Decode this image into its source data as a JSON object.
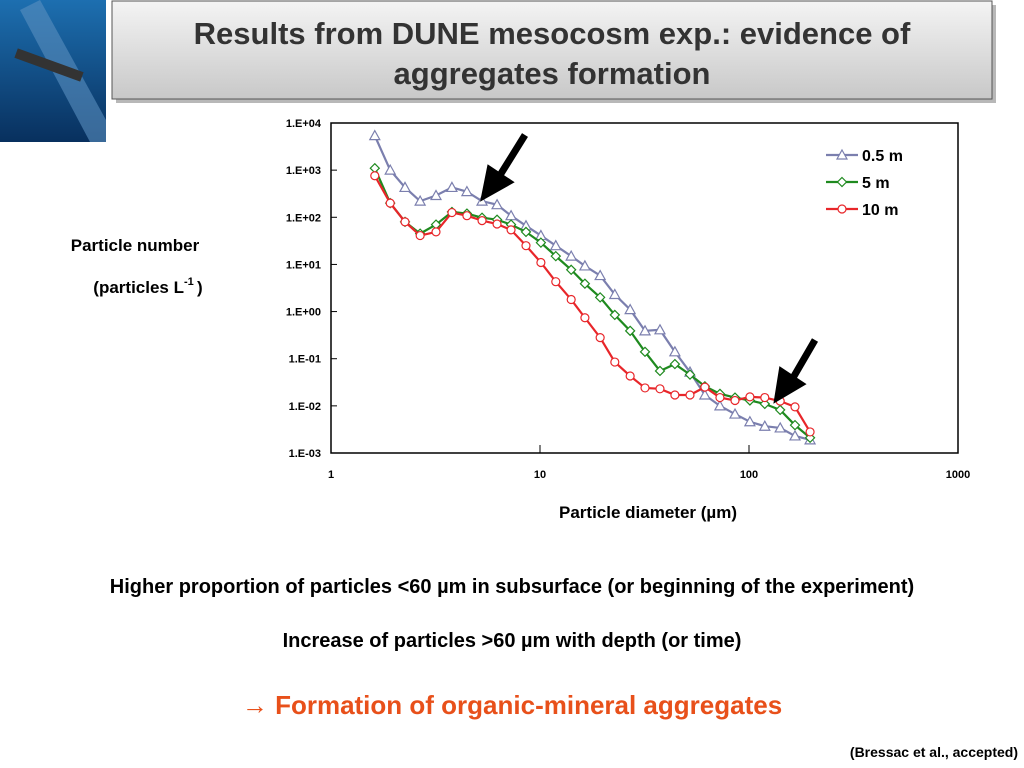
{
  "slide": {
    "title_lines": [
      "Results from DUNE mesocosm exp.: evidence of",
      "aggregates formation"
    ],
    "notes": [
      "Higher proportion of particles <60 µm in subsurface (or beginning of the experiment)",
      "Increase of particles >60 µm with depth (or time)"
    ],
    "conclusion": "→ Formation of organic-mineral aggregates",
    "citation": "(Bressac et al., accepted)"
  },
  "chart_data": {
    "type": "line",
    "ylabel": [
      "Particle number",
      "(particles L",
      "-1",
      ")"
    ],
    "xlabel": "Particle diameter (µm)",
    "log_x": true,
    "log_y": true,
    "xlim": [
      1,
      1000
    ],
    "xticks": [
      1,
      10,
      100,
      1000
    ],
    "ylim": [
      0.001,
      10000
    ],
    "yticks": [
      {
        "value": 10000,
        "label": "1.E+04"
      },
      {
        "value": 1000,
        "label": "1.E+03"
      },
      {
        "value": 100,
        "label": "1.E+02"
      },
      {
        "value": 10,
        "label": "1.E+01"
      },
      {
        "value": 1,
        "label": "1.E+00"
      },
      {
        "value": 0.1,
        "label": "1.E-01"
      },
      {
        "value": 0.01,
        "label": "1.E-02"
      },
      {
        "value": 0.001,
        "label": "1.E-03"
      }
    ],
    "legend": "upper right",
    "x": [
      1.62,
      1.92,
      2.26,
      2.67,
      3.18,
      3.79,
      4.47,
      5.28,
      6.23,
      7.27,
      8.57,
      10.1,
      11.9,
      14.1,
      16.4,
      19.4,
      22.8,
      27.0,
      31.8,
      37.5,
      44.2,
      52.2,
      61.5,
      72.6,
      85.7,
      101,
      119,
      141,
      166,
      196
    ],
    "series": [
      {
        "name": "0.5 m",
        "color": "#7b7fae",
        "marker": "triangle",
        "values": [
          5400,
          1000,
          430,
          220,
          290,
          430,
          350,
          220,
          185,
          108,
          66,
          41,
          25,
          15,
          9.3,
          5.8,
          2.3,
          1.1,
          0.39,
          0.41,
          0.14,
          0.052,
          0.017,
          0.01,
          0.0067,
          0.0046,
          0.0037,
          0.0034,
          0.0023,
          0.0019
        ]
      },
      {
        "name": "5 m",
        "color": "#1f8a1f",
        "marker": "diamond",
        "values": [
          1100,
          200,
          80,
          45,
          70,
          130,
          120,
          98,
          89,
          70,
          49,
          29,
          15,
          7.7,
          3.9,
          2.0,
          0.85,
          0.39,
          0.14,
          0.055,
          0.077,
          0.046,
          0.026,
          0.018,
          0.015,
          0.013,
          0.011,
          0.0082,
          0.0039,
          0.0021
        ]
      },
      {
        "name": "10 m",
        "color": "#e8262a",
        "marker": "circle",
        "values": [
          760,
          200,
          80,
          41,
          49,
          126,
          108,
          85,
          72,
          54,
          25,
          11,
          4.3,
          1.8,
          0.74,
          0.28,
          0.085,
          0.043,
          0.024,
          0.023,
          0.017,
          0.017,
          0.025,
          0.015,
          0.013,
          0.0155,
          0.015,
          0.0126,
          0.0095,
          0.0028
        ]
      }
    ]
  }
}
